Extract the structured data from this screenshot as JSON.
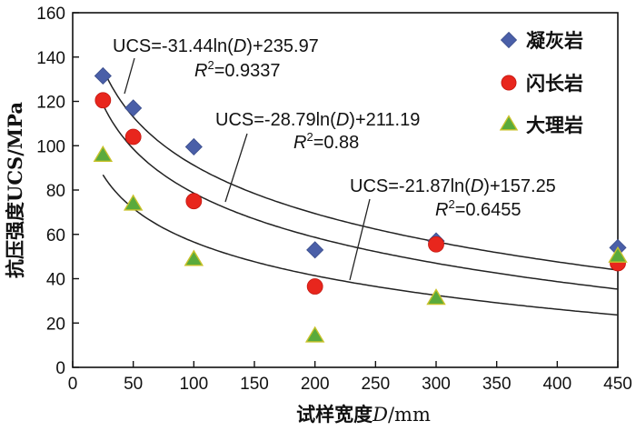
{
  "chart_data": {
    "type": "scatter",
    "xlabel": "试样宽度D/mm",
    "ylabel": "抗压强度UCS/MPa",
    "xlim": [
      0,
      450
    ],
    "ylim": [
      0,
      160
    ],
    "xticks": [
      "0",
      "50",
      "100",
      "150",
      "200",
      "250",
      "300",
      "350",
      "400",
      "450"
    ],
    "yticks": [
      "0",
      "20",
      "40",
      "60",
      "80",
      "100",
      "120",
      "140",
      "160"
    ],
    "legend_position": "top-right",
    "grid": false,
    "series": [
      {
        "name": "凝灰岩",
        "marker": "diamond",
        "color": "#4a5fa8",
        "points": [
          [
            25,
            131.5
          ],
          [
            50,
            117
          ],
          [
            100,
            99.5
          ],
          [
            200,
            53
          ],
          [
            300,
            57
          ],
          [
            450,
            54
          ]
        ],
        "fit": {
          "a": -31.44,
          "b": 235.97,
          "x_range": [
            25,
            450
          ]
        },
        "equation": {
          "ucs": "UCS=-31.44ln(",
          "var": "D",
          "rest": ")+235.97",
          "r2_label": "R",
          "r2_sup": "2",
          "r2_value": "=0.9337"
        }
      },
      {
        "name": "闪长岩",
        "marker": "circle",
        "color": "#e8261d",
        "points": [
          [
            25,
            120.5
          ],
          [
            50,
            104
          ],
          [
            100,
            75
          ],
          [
            200,
            36.5
          ],
          [
            300,
            55.5
          ],
          [
            450,
            47
          ]
        ],
        "fit": {
          "a": -28.79,
          "b": 211.19,
          "x_range": [
            25,
            450
          ]
        },
        "equation": {
          "ucs": "UCS=-28.79ln(",
          "var": "D",
          "rest": ")+211.19",
          "r2_label": "R",
          "r2_sup": "2",
          "r2_value": "=0.88"
        }
      },
      {
        "name": "大理岩",
        "marker": "triangle",
        "color": "#5aaa3c",
        "points": [
          [
            25,
            95.5
          ],
          [
            50,
            73.5
          ],
          [
            100,
            48.5
          ],
          [
            200,
            14
          ],
          [
            300,
            31
          ],
          [
            450,
            50
          ]
        ],
        "fit": {
          "a": -21.87,
          "b": 157.25,
          "x_range": [
            25,
            450
          ]
        },
        "equation": {
          "ucs": "UCS=-21.87ln(",
          "var": "D",
          "rest": ")+157.25",
          "r2_label": "R",
          "r2_sup": "2",
          "r2_value": "=0.6455"
        }
      }
    ]
  }
}
